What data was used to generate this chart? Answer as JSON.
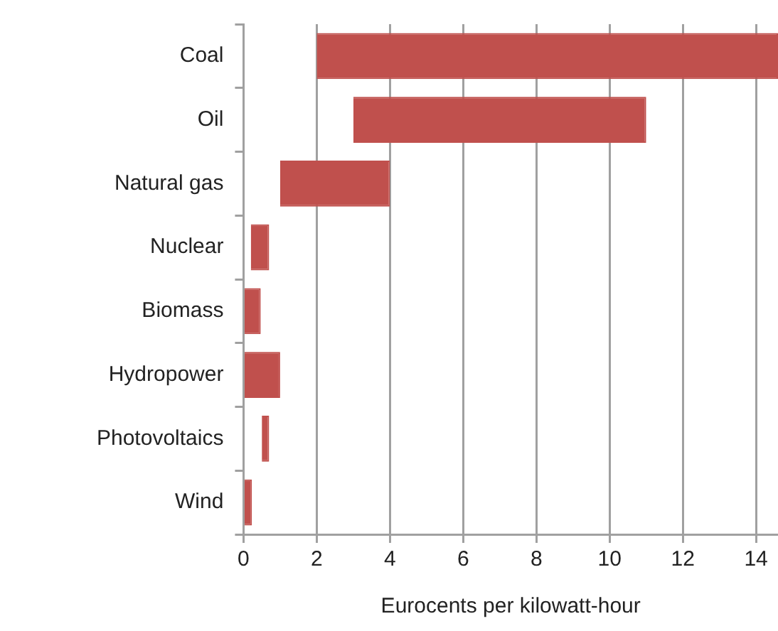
{
  "chart_data": {
    "type": "bar",
    "orientation": "horizontal",
    "xlabel": "Eurocents per kilowatt-hour",
    "categories": [
      "Coal",
      "Oil",
      "Natural gas",
      "Nuclear",
      "Biomass",
      "Hydropower",
      "Photovoltaics",
      "Wind"
    ],
    "base": [
      2,
      3,
      1,
      0.2,
      0,
      0,
      0.5,
      0
    ],
    "values": [
      12.6,
      8,
      3,
      0.5,
      0.47,
      1,
      0.2,
      0.23
    ],
    "color": "#c0504d",
    "xlim": [
      0,
      14.6
    ],
    "xticks": [
      0,
      2,
      4,
      6,
      8,
      10,
      12,
      14
    ],
    "grid": "x"
  }
}
